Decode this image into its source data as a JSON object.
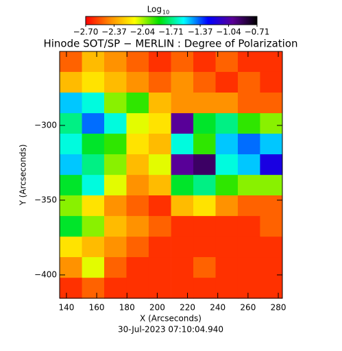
{
  "chart_data": {
    "type": "heatmap",
    "title": "Hinode SOT/SP − MERLIN : Degree of Polarization",
    "xlabel": "X (Arcseconds)",
    "ylabel": "Y (Arcseconds)",
    "footer": "30-Jul-2023 07:10:04.940",
    "colorbar": {
      "title": "Log",
      "title_sub": "10",
      "clim": [
        -2.7,
        -0.71
      ],
      "ticks": [
        {
          "value": -2.7,
          "label": "−2.70"
        },
        {
          "value": -2.37,
          "label": "−2.37"
        },
        {
          "value": -2.04,
          "label": "−2.04"
        },
        {
          "value": -1.71,
          "label": "−1.71"
        },
        {
          "value": -1.37,
          "label": "−1.37"
        },
        {
          "value": -1.04,
          "label": "−1.04"
        },
        {
          "value": -0.71,
          "label": "−0.71"
        }
      ],
      "colors": [
        "#ff0000",
        "#ff8c00",
        "#ffff00",
        "#00e000",
        "#00ffff",
        "#0000ff",
        "#5a0096",
        "#000000"
      ]
    },
    "xlim": [
      135.5,
      282.7
    ],
    "ylim": [
      -415.6,
      -250.5
    ],
    "xticks": [
      140,
      160,
      180,
      200,
      220,
      240,
      260,
      280
    ],
    "yticks": [
      {
        "value": -300,
        "label": "−300"
      },
      {
        "value": -350,
        "label": "−350"
      },
      {
        "value": -400,
        "label": "−400"
      }
    ],
    "x": [
      142.9,
      157.6,
      172.3,
      187.0,
      201.7,
      216.5,
      231.2,
      245.9,
      260.6,
      275.3
    ],
    "y": [
      -257.4,
      -271.1,
      -284.9,
      -298.7,
      -312.4,
      -326.2,
      -340.0,
      -353.7,
      -367.5,
      -381.3,
      -395.0,
      -408.8
    ],
    "z": [
      [
        -2.5,
        -2.3,
        -2.4,
        -2.5,
        -2.6,
        -2.5,
        -2.6,
        -2.5,
        -2.6,
        -2.6
      ],
      [
        -2.3,
        -2.2,
        -2.3,
        -2.4,
        -2.5,
        -2.4,
        -2.5,
        -2.6,
        -2.5,
        -2.6
      ],
      [
        -1.5,
        -1.6,
        -2.0,
        -1.9,
        -2.3,
        -2.4,
        -2.4,
        -2.4,
        -2.5,
        -2.5
      ],
      [
        -1.7,
        -1.4,
        -1.6,
        -2.1,
        -2.2,
        -1.0,
        -1.8,
        -1.7,
        -1.9,
        -2.0
      ],
      [
        -1.6,
        -1.8,
        -1.9,
        -2.2,
        -2.3,
        -1.6,
        -1.9,
        -1.5,
        -1.4,
        -1.5
      ],
      [
        -1.5,
        -1.7,
        -2.0,
        -2.3,
        -2.1,
        -1.0,
        -0.9,
        -1.6,
        -1.5,
        -1.2
      ],
      [
        -1.8,
        -1.6,
        -2.1,
        -2.4,
        -2.3,
        -1.8,
        -1.7,
        -1.9,
        -2.0,
        -2.0
      ],
      [
        -2.0,
        -2.2,
        -2.4,
        -2.5,
        -2.6,
        -2.3,
        -2.2,
        -2.4,
        -2.5,
        -2.5
      ],
      [
        -1.8,
        -2.0,
        -2.3,
        -2.4,
        -2.5,
        -2.6,
        -2.6,
        -2.6,
        -2.6,
        -2.5
      ],
      [
        -2.2,
        -2.3,
        -2.4,
        -2.5,
        -2.6,
        -2.6,
        -2.6,
        -2.6,
        -2.6,
        -2.6
      ],
      [
        -2.4,
        -2.1,
        -2.5,
        -2.6,
        -2.6,
        -2.6,
        -2.5,
        -2.6,
        -2.6,
        -2.6
      ],
      [
        -2.6,
        -2.5,
        -2.6,
        -2.6,
        -2.6,
        -2.6,
        -2.6,
        -2.6,
        -2.6,
        -2.6
      ]
    ]
  }
}
